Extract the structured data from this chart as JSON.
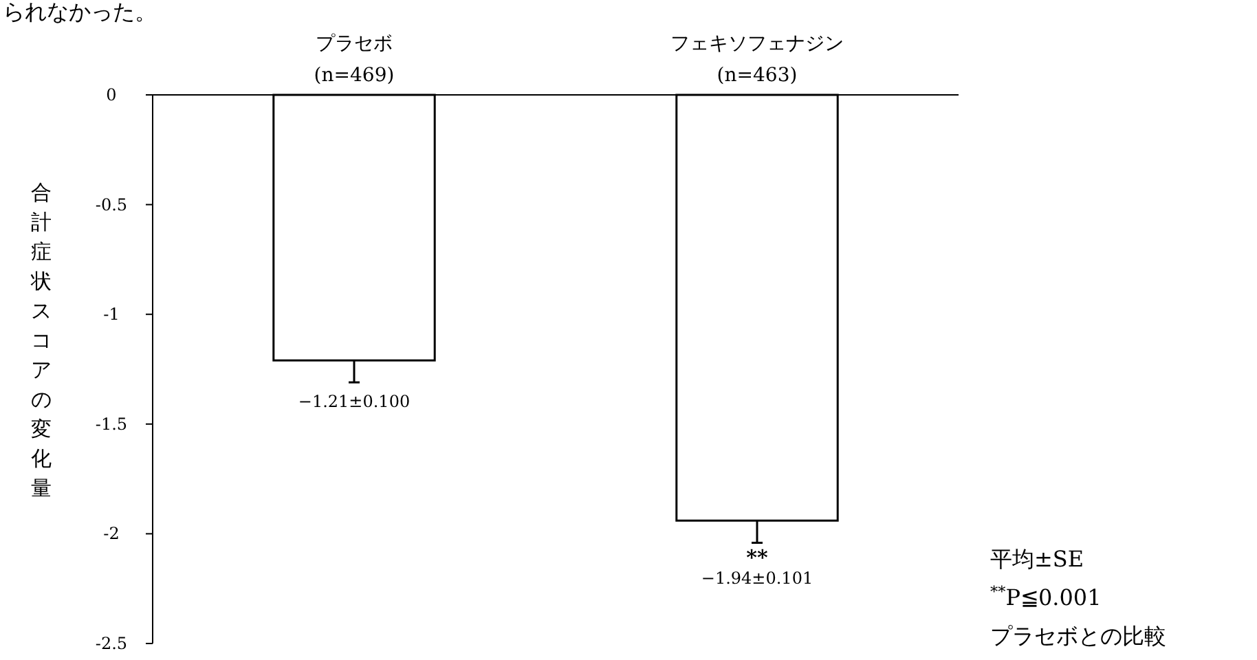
{
  "chart_data": {
    "type": "bar",
    "categories": [
      "プラセボ\n(n=469)",
      "フェキソフェナジン\n(n=463)"
    ],
    "values": [
      -1.21,
      -1.94
    ],
    "errors": [
      [
        -1.31,
        -1.21
      ],
      [
        -2.041,
        -1.94
      ]
    ],
    "value_labels": [
      "−1.21±0.100",
      "−1.94±0.101"
    ],
    "color": "#ffffff",
    "ylim": [
      -2.5,
      0
    ],
    "yticks": [
      0,
      -0.5,
      -1,
      -1.5,
      -2,
      -2.5
    ],
    "ylabel": "合計症状スコアの変化量",
    "annotations": [
      {
        "text": "**",
        "x": "フェキソフェナジン\n(n=463)",
        "y": -2.041
      },
      "られなかった。",
      "平均±SE",
      "$^{**}$P≦0.001",
      "プラセボとの比較"
    ]
  }
}
